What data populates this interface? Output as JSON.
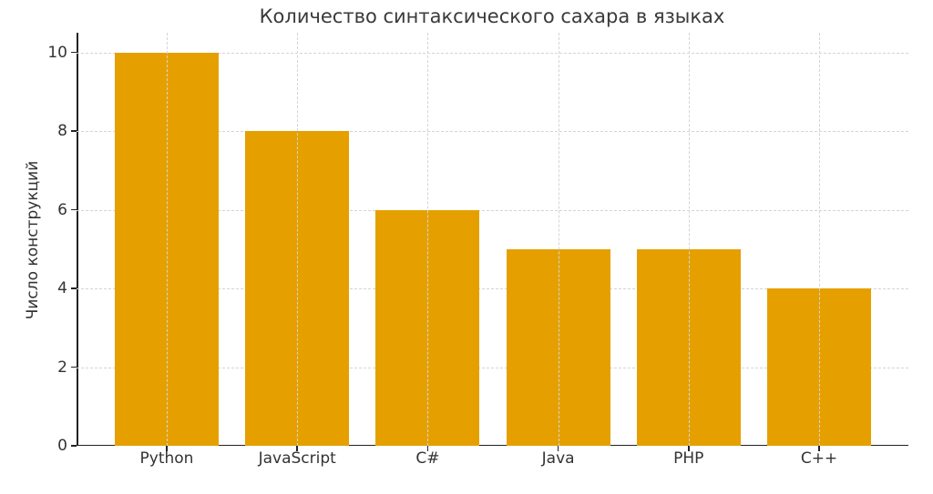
{
  "chart_data": {
    "type": "bar",
    "title": "Количество синтаксического сахара в языках",
    "xlabel": "",
    "ylabel": "Число конструкций",
    "categories": [
      "Python",
      "JavaScript",
      "C#",
      "Java",
      "PHP",
      "C++"
    ],
    "values": [
      10,
      8,
      6,
      5,
      5,
      4
    ],
    "ylim": [
      0,
      10.5
    ],
    "yticks": [
      0,
      2,
      4,
      6,
      8,
      10
    ],
    "grid": true,
    "legend": null,
    "bar_color": "#e5a000"
  }
}
